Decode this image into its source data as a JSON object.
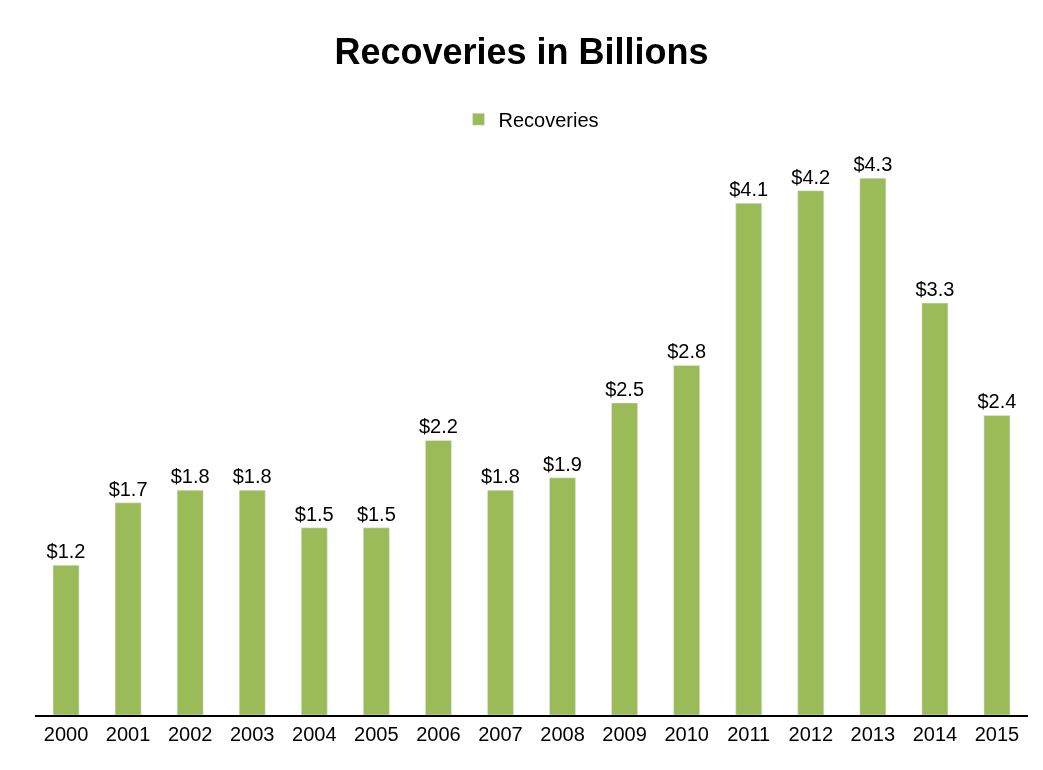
{
  "chart_data": {
    "type": "bar",
    "title": "Recoveries in Billions",
    "categories": [
      "2000",
      "2001",
      "2002",
      "2003",
      "2004",
      "2005",
      "2006",
      "2007",
      "2008",
      "2009",
      "2010",
      "2011",
      "2012",
      "2013",
      "2014",
      "2015"
    ],
    "series": [
      {
        "name": "Recoveries",
        "color": "#9bbb59",
        "values": [
          1.2,
          1.7,
          1.8,
          1.8,
          1.5,
          1.5,
          2.2,
          1.8,
          1.9,
          2.5,
          2.8,
          4.1,
          4.2,
          4.3,
          3.3,
          2.4
        ],
        "value_labels": [
          "$1.2",
          "$1.7",
          "$1.8",
          "$1.8",
          "$1.5",
          "$1.5",
          "$2.2",
          "$1.8",
          "$1.9",
          "$2.5",
          "$2.8",
          "$4.1",
          "$4.2",
          "$4.3",
          "$3.3",
          "$2.4"
        ]
      }
    ],
    "legend": "top",
    "tick_labels": "x"
  }
}
